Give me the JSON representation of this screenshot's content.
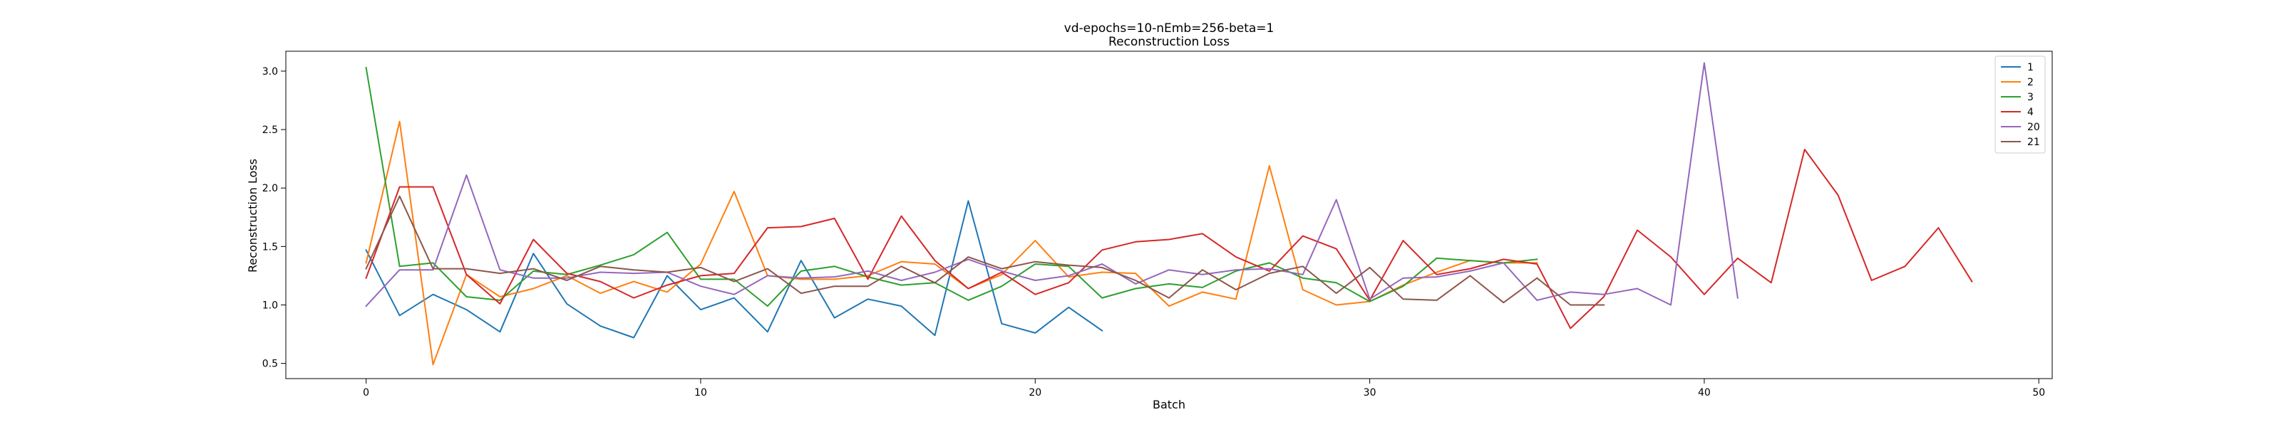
{
  "chart_data": {
    "type": "line",
    "title": "vd-epochs=10-nEmb=256-beta=1",
    "subtitle": "Reconstruction Loss",
    "xlabel": "Batch",
    "ylabel": "Reconstruction Loss",
    "xlim": [
      -2.4,
      50.4
    ],
    "ylim": [
      0.37,
      3.17
    ],
    "xticks": [
      0,
      10,
      20,
      30,
      40,
      50
    ],
    "yticks": [
      0.5,
      1.0,
      1.5,
      2.0,
      2.5,
      3.0
    ],
    "xtick_labels": [
      "0",
      "10",
      "20",
      "30",
      "40",
      "50"
    ],
    "ytick_labels": [
      "0.5",
      "1.0",
      "1.5",
      "2.0",
      "2.5",
      "3.0"
    ],
    "grid": false,
    "legend_position": "top-right",
    "series": [
      {
        "name": "1",
        "color": "#1f77b4",
        "values": [
          1.47,
          0.91,
          1.09,
          0.96,
          0.77,
          1.44,
          1.01,
          0.82,
          0.72,
          1.25,
          0.96,
          1.06,
          0.77,
          1.38,
          0.89,
          1.05,
          0.99,
          0.74,
          1.89,
          0.84,
          0.76,
          0.98,
          0.78
        ]
      },
      {
        "name": "2",
        "color": "#ff7f0e",
        "values": [
          1.36,
          2.57,
          0.49,
          1.26,
          1.07,
          1.14,
          1.25,
          1.1,
          1.2,
          1.11,
          1.35,
          1.97,
          1.25,
          1.22,
          1.22,
          1.25,
          1.37,
          1.35,
          1.14,
          1.26,
          1.55,
          1.24,
          1.28,
          1.27,
          0.99,
          1.11,
          1.05,
          2.19,
          1.13,
          1.0,
          1.03,
          1.17,
          1.28,
          1.38,
          1.36,
          1.36
        ]
      },
      {
        "name": "3",
        "color": "#2ca02c",
        "values": [
          3.03,
          1.33,
          1.36,
          1.07,
          1.04,
          1.29,
          1.26,
          1.34,
          1.43,
          1.62,
          1.22,
          1.22,
          0.99,
          1.29,
          1.33,
          1.24,
          1.17,
          1.19,
          1.04,
          1.16,
          1.35,
          1.33,
          1.06,
          1.14,
          1.18,
          1.15,
          1.29,
          1.36,
          1.23,
          1.19,
          1.03,
          1.16,
          1.4,
          1.38,
          1.36,
          1.39
        ]
      },
      {
        "name": "4",
        "color": "#d62728",
        "values": [
          1.23,
          2.01,
          2.01,
          1.26,
          1.01,
          1.56,
          1.27,
          1.2,
          1.06,
          1.17,
          1.25,
          1.27,
          1.66,
          1.67,
          1.74,
          1.22,
          1.76,
          1.38,
          1.14,
          1.28,
          1.09,
          1.19,
          1.47,
          1.54,
          1.56,
          1.61,
          1.41,
          1.29,
          1.59,
          1.48,
          1.04,
          1.55,
          1.26,
          1.31,
          1.39,
          1.35,
          0.8,
          1.07,
          1.64,
          1.41,
          1.09,
          1.4,
          1.19,
          2.33,
          1.94,
          1.21,
          1.33,
          1.66,
          1.2
        ]
      },
      {
        "name": "20",
        "color": "#9467bd",
        "values": [
          0.99,
          1.3,
          1.3,
          2.11,
          1.3,
          1.23,
          1.23,
          1.28,
          1.27,
          1.28,
          1.16,
          1.09,
          1.25,
          1.23,
          1.24,
          1.29,
          1.21,
          1.28,
          1.39,
          1.29,
          1.21,
          1.25,
          1.35,
          1.18,
          1.3,
          1.26,
          1.3,
          1.31,
          1.26,
          1.9,
          1.05,
          1.23,
          1.24,
          1.29,
          1.36,
          1.04,
          1.11,
          1.09,
          1.14,
          1.0,
          3.07,
          1.06
        ]
      },
      {
        "name": "21",
        "color": "#8c564b",
        "values": [
          1.31,
          1.93,
          1.31,
          1.31,
          1.27,
          1.31,
          1.21,
          1.33,
          1.3,
          1.28,
          1.32,
          1.2,
          1.31,
          1.1,
          1.16,
          1.16,
          1.33,
          1.19,
          1.41,
          1.31,
          1.37,
          1.34,
          1.32,
          1.21,
          1.06,
          1.3,
          1.13,
          1.27,
          1.33,
          1.1,
          1.32,
          1.05,
          1.04,
          1.25,
          1.02,
          1.23,
          1.0,
          1.0
        ]
      }
    ]
  }
}
